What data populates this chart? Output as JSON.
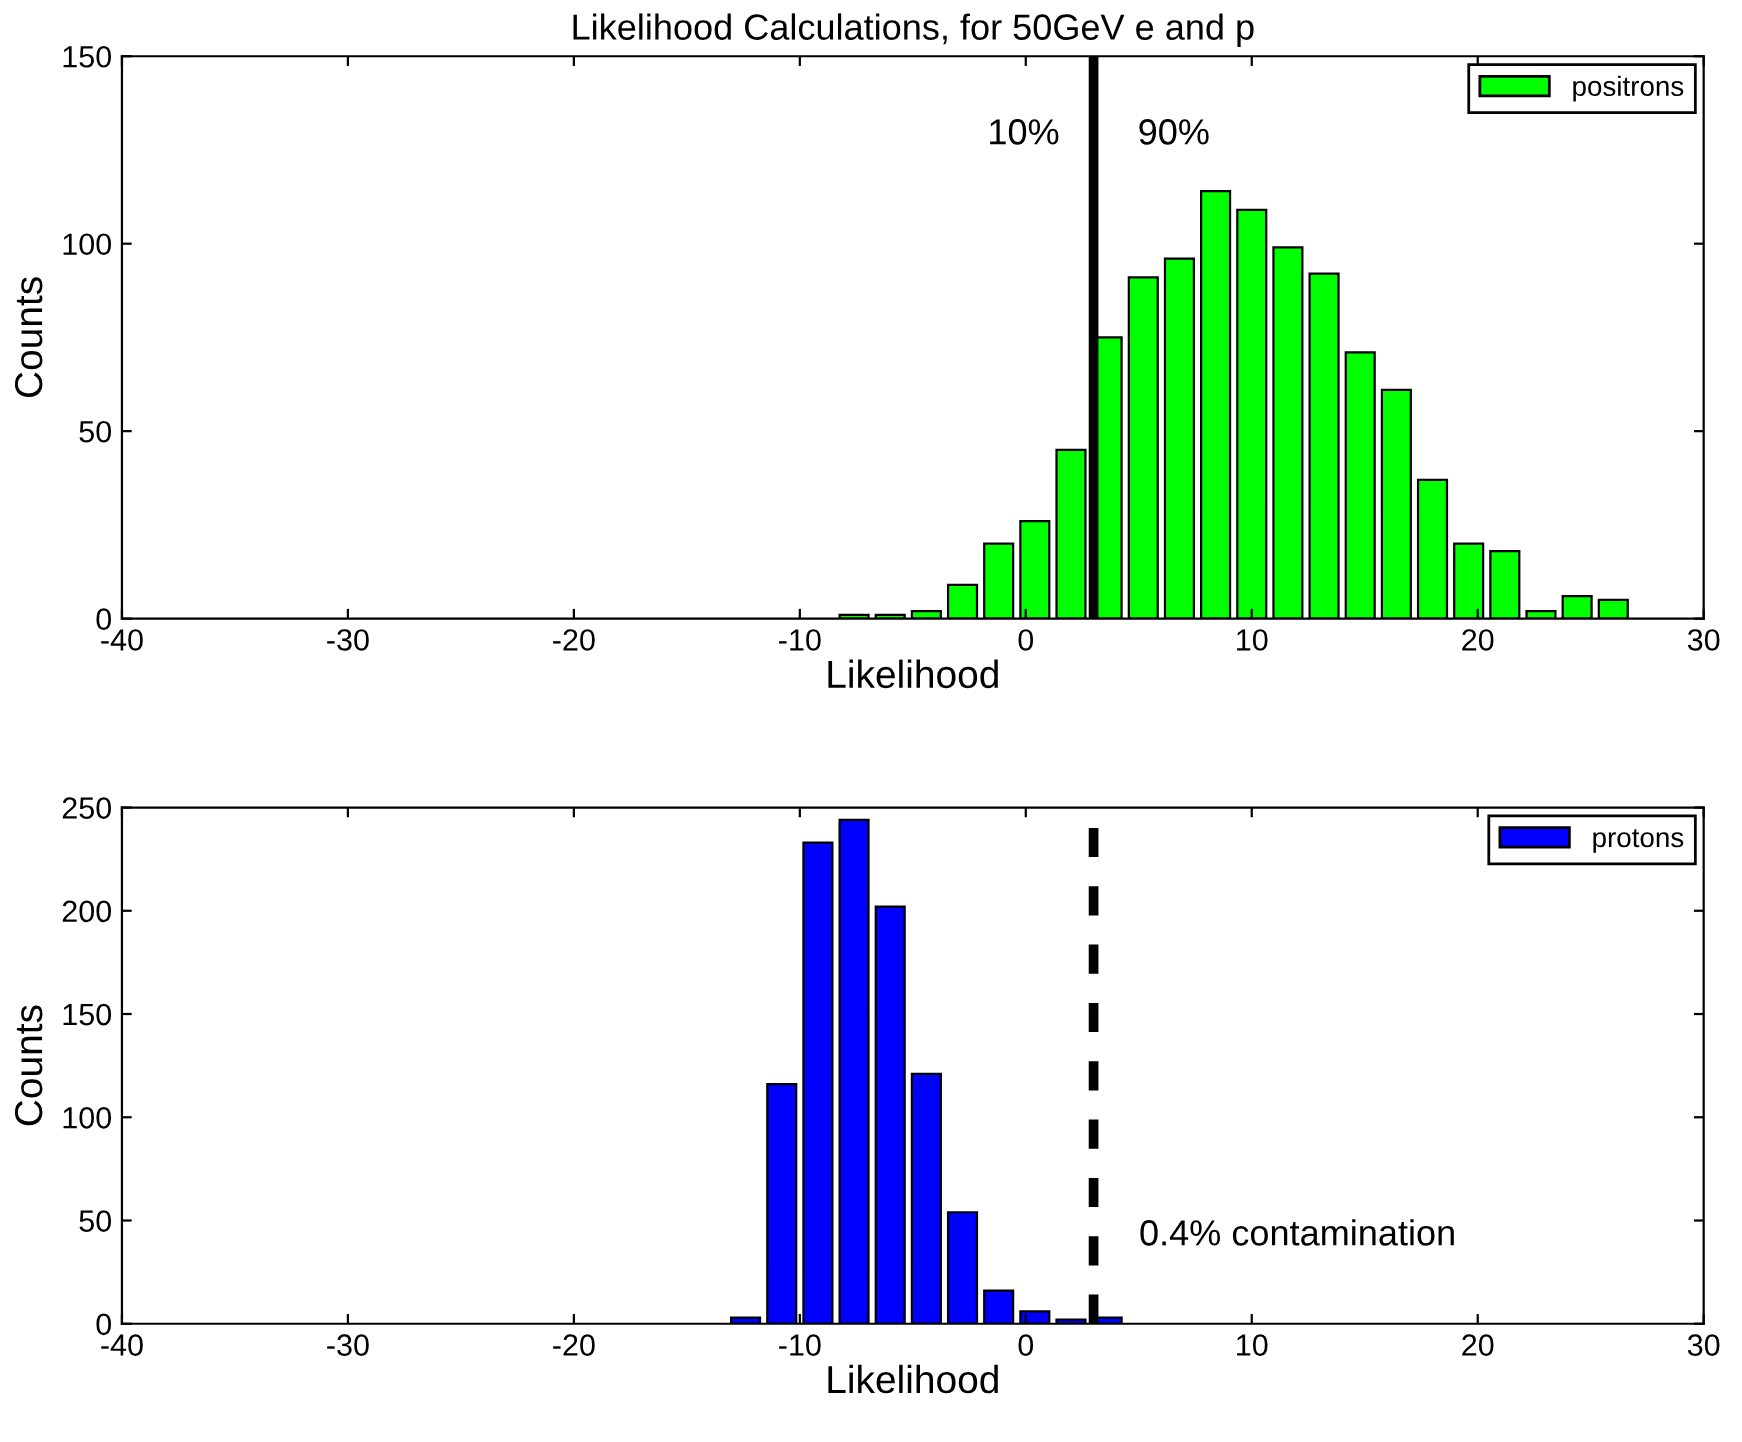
{
  "chart_data": [
    {
      "type": "histogram",
      "title": "Likelihood Calculations, for 50GeV e and p",
      "xlabel": "Likelihood",
      "ylabel": "Counts",
      "bins": [
        -8.4,
        -6.8,
        -5.2,
        -3.6,
        -2.0,
        -0.4,
        1.2,
        2.8,
        4.4,
        6.0,
        7.6,
        9.2,
        10.8,
        12.4,
        14.0,
        15.6,
        17.2,
        18.8,
        20.4,
        22.0,
        23.6,
        25.2,
        26.8
      ],
      "series": [
        {
          "name": "positrons",
          "color": "#00ff00",
          "values": [
            1,
            1,
            2,
            9,
            20,
            26,
            45,
            75,
            91,
            96,
            114,
            109,
            99,
            92,
            71,
            61,
            37,
            20,
            18,
            2,
            6,
            5
          ]
        }
      ],
      "xlim": [
        -40,
        30
      ],
      "xticks": [
        -40,
        -30,
        -20,
        -10,
        0,
        10,
        20,
        30
      ],
      "ylim": [
        0,
        150
      ],
      "yticks": [
        0,
        50,
        100,
        150
      ],
      "ref_lines": [
        {
          "axis": "x",
          "value": 3,
          "color": "#000000",
          "line_style": "solid"
        }
      ],
      "annotations": [
        "10%",
        "90%"
      ],
      "legend": "top right",
      "grid": false
    },
    {
      "type": "histogram",
      "xlabel": "Likelihood",
      "ylabel": "Counts",
      "bins": [
        -13.2,
        -11.6,
        -10.0,
        -8.4,
        -6.8,
        -5.2,
        -3.6,
        -2.0,
        -0.4,
        1.2,
        2.8,
        4.4
      ],
      "series": [
        {
          "name": "protons",
          "color": "#0000ff",
          "values": [
            3,
            116,
            233,
            244,
            202,
            121,
            54,
            16,
            6,
            2,
            3
          ]
        }
      ],
      "xlim": [
        -40,
        30
      ],
      "xticks": [
        -40,
        -30,
        -20,
        -10,
        0,
        10,
        20,
        30
      ],
      "ylim": [
        0,
        250
      ],
      "yticks": [
        0,
        50,
        100,
        150,
        200,
        250
      ],
      "ref_lines": [
        {
          "axis": "x",
          "value": 3,
          "color": "#000000",
          "line_style": "dashed"
        }
      ],
      "annotations": [
        "0.4% contamination"
      ],
      "legend": "top right",
      "grid": false
    }
  ]
}
